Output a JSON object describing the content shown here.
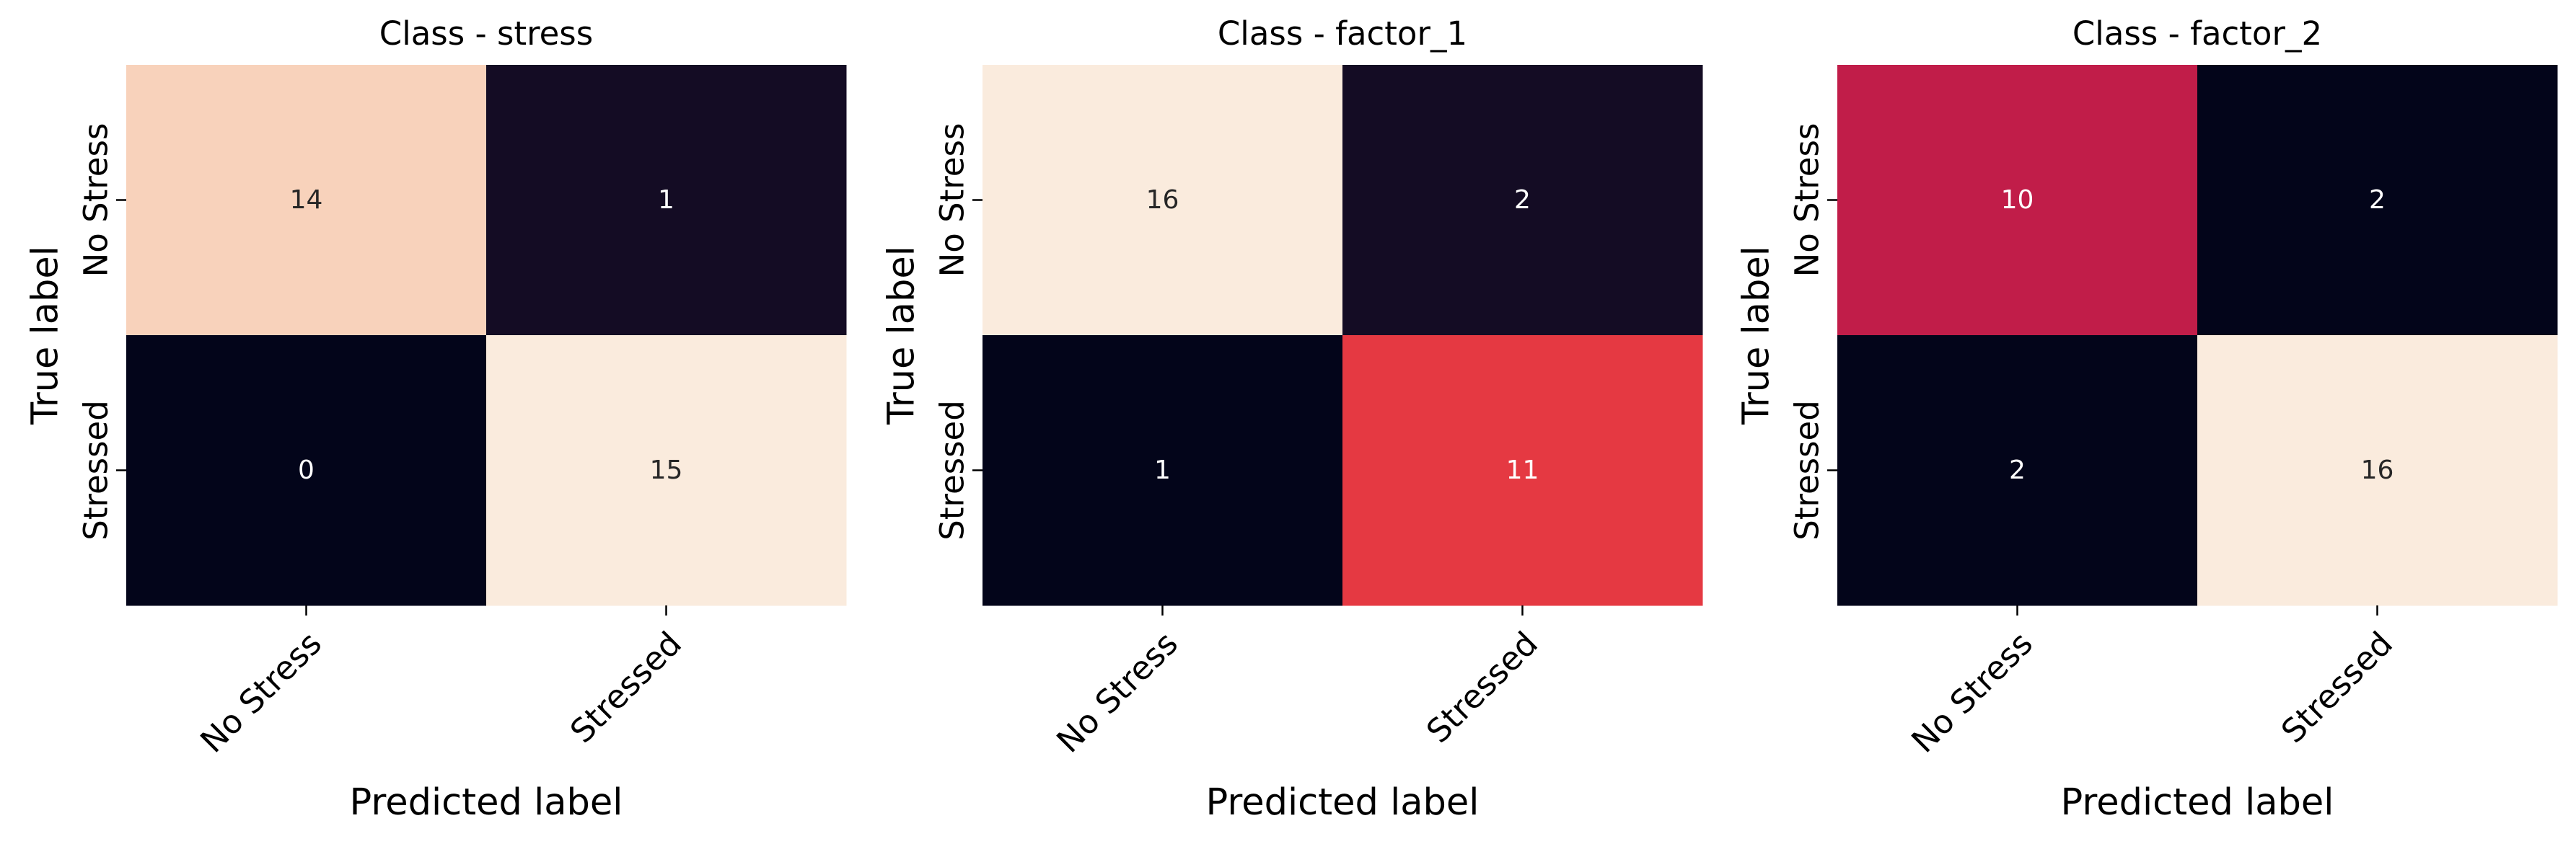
{
  "chart_data": [
    {
      "type": "heatmap",
      "title": "Class - stress",
      "xlabel": "Predicted label",
      "ylabel": "True label",
      "x_categories": [
        "No Stress",
        "Stressed"
      ],
      "y_categories": [
        "No Stress",
        "Stressed"
      ],
      "values": [
        [
          14,
          1
        ],
        [
          0,
          15
        ]
      ],
      "colormap": "rocket",
      "colorbar": false,
      "grid": false
    },
    {
      "type": "heatmap",
      "title": "Class - factor_1",
      "xlabel": "Predicted label",
      "ylabel": "True label",
      "x_categories": [
        "No Stress",
        "Stressed"
      ],
      "y_categories": [
        "No Stress",
        "Stressed"
      ],
      "values": [
        [
          16,
          2
        ],
        [
          1,
          11
        ]
      ],
      "colormap": "rocket",
      "colorbar": false,
      "grid": false
    },
    {
      "type": "heatmap",
      "title": "Class - factor_2",
      "xlabel": "Predicted label",
      "ylabel": "True label",
      "x_categories": [
        "No Stress",
        "Stressed"
      ],
      "y_categories": [
        "No Stress",
        "Stressed"
      ],
      "values": [
        [
          10,
          2
        ],
        [
          2,
          16
        ]
      ],
      "colormap": "rocket",
      "colorbar": false,
      "grid": false
    }
  ]
}
